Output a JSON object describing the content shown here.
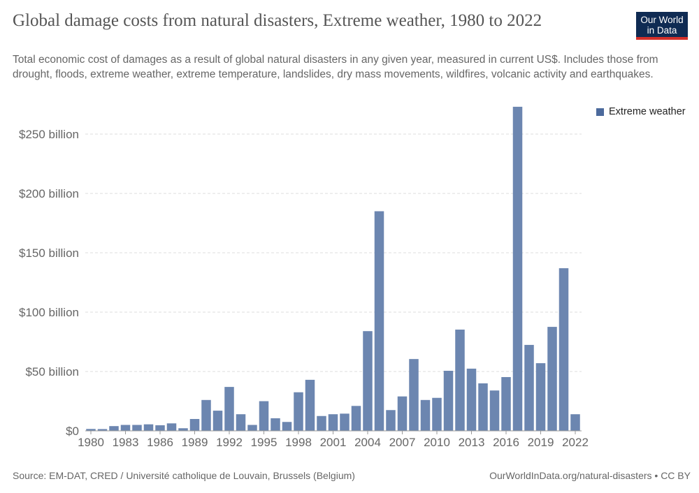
{
  "header": {
    "title": "Global damage costs from natural disasters, Extreme weather, 1980 to 2022",
    "subtitle": "Total economic cost of damages as a result of global natural disasters in any given year, measured in current US$. Includes those from drought, floods, extreme weather, extreme temperature, landslides, dry mass movements, wildfires, volcanic activity and earthquakes.",
    "logo": "Our World in Data"
  },
  "footer": {
    "source": "Source: EM-DAT, CRED / Université catholique de Louvain, Brussels (Belgium)",
    "credit": "OurWorldInData.org/natural-disasters • CC BY"
  },
  "colors": {
    "bar": "#6c86b0",
    "legend": "#4c6a9c",
    "logo_bg": "#0f2b53",
    "logo_accent": "#d4302a"
  },
  "chart_data": {
    "type": "bar",
    "title": "Global damage costs from natural disasters, Extreme weather, 1980 to 2022",
    "ylabel": "",
    "xlabel": "",
    "unit": "billion US$",
    "ylim": [
      0,
      273
    ],
    "yticks": [
      0,
      50,
      100,
      150,
      200,
      250
    ],
    "ytick_labels": [
      "$0",
      "$50 billion",
      "$100 billion",
      "$150 billion",
      "$200 billion",
      "$250 billion"
    ],
    "xtick_labels": [
      "1980",
      "1983",
      "1986",
      "1989",
      "1992",
      "1995",
      "1998",
      "2001",
      "2004",
      "2007",
      "2010",
      "2013",
      "2016",
      "2019",
      "2022"
    ],
    "grid": "horizontal-dashed",
    "legend": "top-right",
    "series": [
      {
        "name": "Extreme weather",
        "categories": [
          1980,
          1981,
          1982,
          1983,
          1984,
          1985,
          1986,
          1987,
          1988,
          1989,
          1990,
          1991,
          1992,
          1993,
          1994,
          1995,
          1996,
          1997,
          1998,
          1999,
          2000,
          2001,
          2002,
          2003,
          2004,
          2005,
          2006,
          2007,
          2008,
          2009,
          2010,
          2011,
          2012,
          2013,
          2014,
          2015,
          2016,
          2017,
          2018,
          2019,
          2020,
          2021,
          2022
        ],
        "values": [
          1.6,
          1.5,
          4,
          5,
          5,
          5.5,
          4.7,
          6.3,
          2.2,
          10,
          26,
          17,
          37,
          14,
          5,
          25,
          10.6,
          7.5,
          32.5,
          43,
          12.5,
          14,
          14.5,
          21,
          84,
          185,
          17.5,
          29,
          60.5,
          26,
          27.8,
          50.6,
          85.3,
          52.4,
          40,
          34,
          45.3,
          273,
          72.4,
          57,
          87.6,
          137,
          14
        ]
      }
    ]
  }
}
